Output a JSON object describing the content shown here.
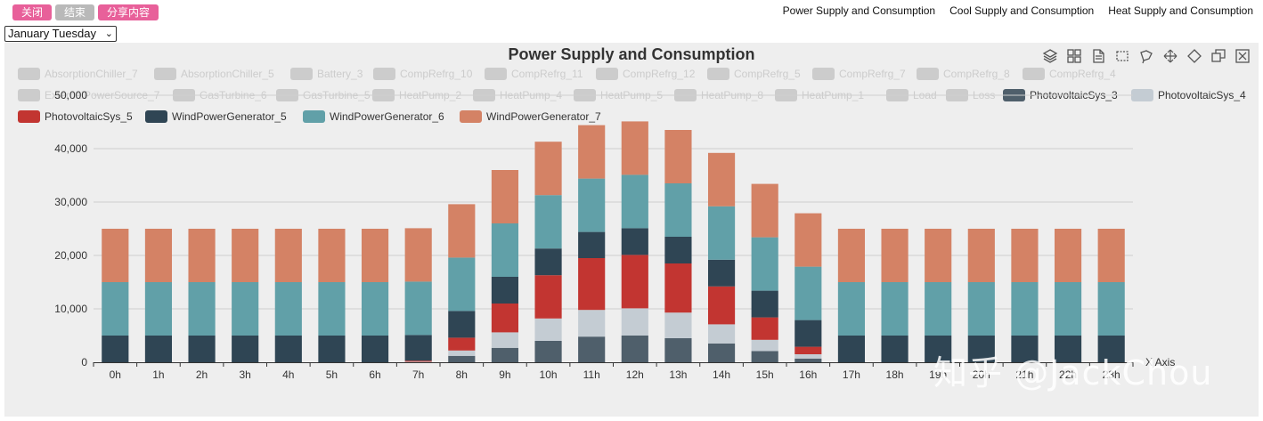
{
  "buttons": {
    "close": "关闭",
    "end": "结束",
    "share": "分享内容"
  },
  "nav": {
    "power": "Power Supply and Consumption",
    "cool": "Cool Supply and Consumption",
    "heat": "Heat Supply and Consumption"
  },
  "day_select": {
    "value": "January Tuesday"
  },
  "watermark": "知乎 @JackChou",
  "toolbox": [
    {
      "icon": "stack-icon",
      "title": "stack"
    },
    {
      "icon": "tiled-icon",
      "title": "tiled"
    },
    {
      "icon": "data-view-icon",
      "title": "data view"
    },
    {
      "icon": "rect-select-icon",
      "title": "box select"
    },
    {
      "icon": "lasso-select-icon",
      "title": "lasso select"
    },
    {
      "icon": "keep-selected-icon",
      "title": "keep selected"
    },
    {
      "icon": "clear-select-icon",
      "title": "clear selection"
    },
    {
      "icon": "restore-icon",
      "title": "restore"
    },
    {
      "icon": "close-icon",
      "title": "close"
    }
  ],
  "colors": {
    "inactive": "#cccccc",
    "PhotovoltaicSys_3": "#4f5f6b",
    "PhotovoltaicSys_4": "#c4ccd3",
    "PhotovoltaicSys_5": "#c23531",
    "WindPowerGenerator_5": "#2f4554",
    "WindPowerGenerator_6": "#61a0a8",
    "WindPowerGenerator_7": "#d48265"
  },
  "legend": [
    {
      "name": "AbsorptionChiller_7",
      "active": false
    },
    {
      "name": "AbsorptionChiller_5",
      "active": false
    },
    {
      "name": "Battery_3",
      "active": false
    },
    {
      "name": "CompRefrg_10",
      "active": false
    },
    {
      "name": "CompRefrg_11",
      "active": false
    },
    {
      "name": "CompRefrg_12",
      "active": false
    },
    {
      "name": "CompRefrg_5",
      "active": false
    },
    {
      "name": "CompRefrg_7",
      "active": false
    },
    {
      "name": "CompRefrg_8",
      "active": false
    },
    {
      "name": "CompRefrg_4",
      "active": false
    },
    {
      "name": "ExternalPowerSource_7",
      "active": false
    },
    {
      "name": "GasTurbine_6",
      "active": false
    },
    {
      "name": "GasTurbine_5",
      "active": false
    },
    {
      "name": "HeatPump_2",
      "active": false
    },
    {
      "name": "HeatPump_4",
      "active": false
    },
    {
      "name": "HeatPump_5",
      "active": false
    },
    {
      "name": "HeatPump_8",
      "active": false
    },
    {
      "name": "HeatPump_1",
      "active": false
    },
    {
      "name": "Load",
      "active": false
    },
    {
      "name": "Loss",
      "active": false
    },
    {
      "name": "PhotovoltaicSys_3",
      "active": true
    },
    {
      "name": "PhotovoltaicSys_4",
      "active": true
    },
    {
      "name": "PhotovoltaicSys_5",
      "active": true
    },
    {
      "name": "WindPowerGenerator_5",
      "active": true
    },
    {
      "name": "WindPowerGenerator_6",
      "active": true
    },
    {
      "name": "WindPowerGenerator_7",
      "active": true
    }
  ],
  "chart_data": {
    "type": "bar",
    "stacked": true,
    "title": "Power Supply and Consumption",
    "xlabel": "X Axis",
    "ylabel": "",
    "ylim": [
      0,
      50000
    ],
    "yticks": [
      "0",
      "10,000",
      "20,000",
      "30,000",
      "40,000",
      "50,000"
    ],
    "grid": true,
    "categories": [
      "0h",
      "1h",
      "2h",
      "3h",
      "4h",
      "5h",
      "6h",
      "7h",
      "8h",
      "9h",
      "10h",
      "11h",
      "12h",
      "13h",
      "14h",
      "15h",
      "16h",
      "17h",
      "18h",
      "19h",
      "20h",
      "21h",
      "22h",
      "23h"
    ],
    "series": [
      {
        "name": "PhotovoltaicSys_3",
        "values": [
          0,
          0,
          0,
          0,
          0,
          0,
          0,
          0,
          1200,
          2700,
          4000,
          4800,
          5000,
          4500,
          3500,
          2100,
          700,
          0,
          0,
          0,
          0,
          0,
          0,
          0
        ]
      },
      {
        "name": "PhotovoltaicSys_4",
        "values": [
          0,
          0,
          0,
          0,
          0,
          0,
          0,
          100,
          1000,
          2900,
          4200,
          5000,
          5100,
          4800,
          3600,
          2100,
          800,
          0,
          0,
          0,
          0,
          0,
          0,
          0
        ]
      },
      {
        "name": "PhotovoltaicSys_5",
        "values": [
          0,
          0,
          0,
          0,
          0,
          0,
          0,
          200,
          2400,
          5400,
          8100,
          9700,
          10000,
          9200,
          7100,
          4200,
          1400,
          0,
          0,
          0,
          0,
          0,
          0,
          0
        ]
      },
      {
        "name": "WindPowerGenerator_5",
        "values": [
          5000,
          5000,
          5000,
          5000,
          5000,
          5000,
          5000,
          4800,
          5000,
          5000,
          5000,
          4900,
          5000,
          5000,
          5000,
          5000,
          5000,
          5000,
          5000,
          5000,
          5000,
          5000,
          5000,
          5000
        ]
      },
      {
        "name": "WindPowerGenerator_6",
        "values": [
          10000,
          10000,
          10000,
          10000,
          10000,
          10000,
          10000,
          10000,
          10000,
          10000,
          10000,
          10000,
          10000,
          10000,
          10000,
          10000,
          10000,
          10000,
          10000,
          10000,
          10000,
          10000,
          10000,
          10000
        ]
      },
      {
        "name": "WindPowerGenerator_7",
        "values": [
          10000,
          10000,
          10000,
          10000,
          10000,
          10000,
          10000,
          10000,
          10000,
          10000,
          10000,
          10000,
          10000,
          10000,
          10000,
          10000,
          10000,
          10000,
          10000,
          10000,
          10000,
          10000,
          10000,
          10000
        ]
      }
    ]
  }
}
